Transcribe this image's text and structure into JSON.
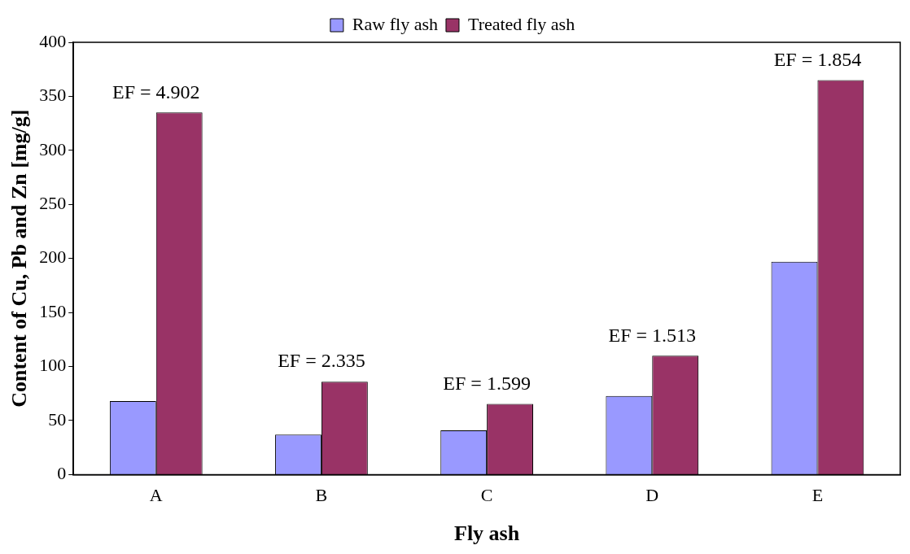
{
  "chart_data": {
    "type": "bar",
    "xlabel": "Fly ash",
    "ylabel": "Content of Cu, Pb and Zn [mg/g]",
    "categories": [
      "A",
      "B",
      "C",
      "D",
      "E"
    ],
    "series": [
      {
        "name": "Raw fly ash",
        "color": "#9999ff",
        "values": [
          68,
          37,
          41,
          72.7,
          197
        ]
      },
      {
        "name": "Treated fly ash",
        "color": "#993366",
        "values": [
          335,
          86,
          65.5,
          110,
          365
        ]
      }
    ],
    "ylim": [
      0,
      400
    ],
    "yticks": [
      0,
      50,
      100,
      150,
      200,
      250,
      300,
      350,
      400
    ],
    "grid": false,
    "legend": "top",
    "annotations": [
      {
        "text": "EF = 4.902",
        "x": "A",
        "y": 335
      },
      {
        "text": "EF = 2.335",
        "x": "B",
        "y": 86
      },
      {
        "text": "EF = 1.599",
        "x": "C",
        "y": 65.5
      },
      {
        "text": "EF = 1.513",
        "x": "D",
        "y": 110
      },
      {
        "text": "EF = 1.854",
        "x": "E",
        "y": 365
      }
    ]
  }
}
